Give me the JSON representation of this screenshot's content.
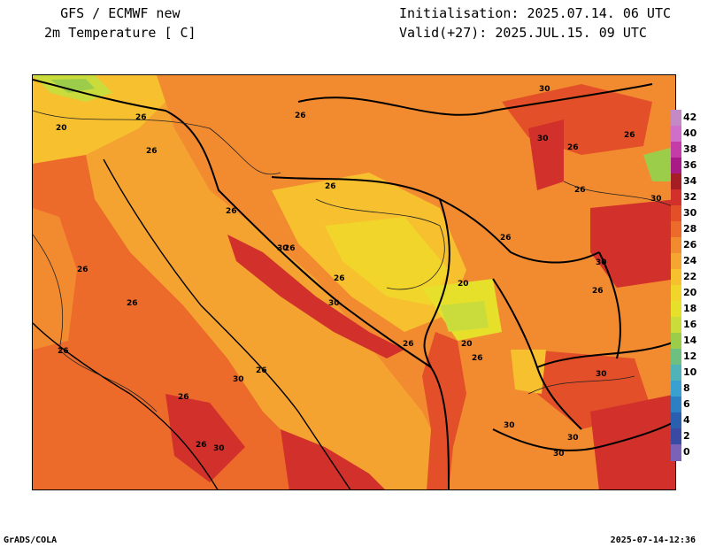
{
  "header": {
    "left_line1": "GFS / ECMWF new",
    "left_line2": "2m Temperature [ C]",
    "right_line1": "Initialisation: 2025.07.14. 06 UTC",
    "right_line2": "Valid(+27): 2025.JUL.15. 09 UTC"
  },
  "footer": {
    "left": "GrADS/COLA",
    "right": "2025-07-14-12:36"
  },
  "legend": {
    "labels": [
      "42",
      "40",
      "38",
      "36",
      "34",
      "32",
      "30",
      "28",
      "26",
      "24",
      "22",
      "20",
      "18",
      "16",
      "14",
      "12",
      "10",
      "8",
      "6",
      "4",
      "2",
      "0"
    ],
    "colors": [
      "#c48ac6",
      "#cf6fc8",
      "#c43ca8",
      "#a81a86",
      "#a51e24",
      "#d2302a",
      "#e34f28",
      "#ec6b2b",
      "#f28a30",
      "#f6a532",
      "#f6c02f",
      "#f2d52a",
      "#e6e02b",
      "#c9dc3b",
      "#9ccd4a",
      "#6dc080",
      "#4fb3b8",
      "#3aa0cf",
      "#2d7fc4",
      "#2a5fb0",
      "#3a4aa2",
      "#7a63b6"
    ]
  },
  "contour_labels": [
    "20",
    "26",
    "26",
    "26",
    "26",
    "26",
    "26",
    "26",
    "26",
    "26",
    "26",
    "26",
    "26",
    "26",
    "26",
    "26",
    "26",
    "26",
    "26",
    "26",
    "26",
    "30",
    "30",
    "30",
    "30",
    "30",
    "30",
    "30",
    "30",
    "30",
    "30",
    "30",
    "30",
    "20",
    "20"
  ]
}
